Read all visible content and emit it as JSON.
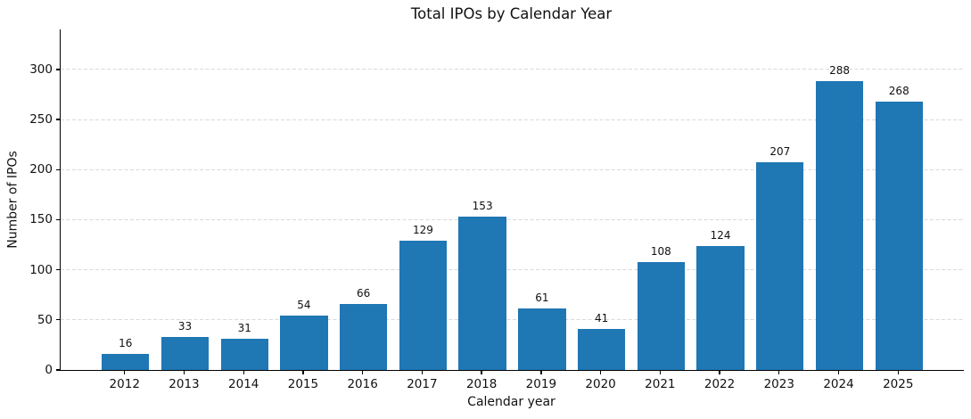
{
  "chart_data": {
    "type": "bar",
    "title": "Total IPOs by Calendar Year",
    "xlabel": "Calendar year",
    "ylabel": "Number of IPOs",
    "categories": [
      "2012",
      "2013",
      "2014",
      "2015",
      "2016",
      "2017",
      "2018",
      "2019",
      "2020",
      "2021",
      "2022",
      "2023",
      "2024",
      "2025"
    ],
    "values": [
      16,
      33,
      31,
      54,
      66,
      129,
      153,
      61,
      41,
      108,
      124,
      207,
      288,
      268
    ],
    "value_labels_shown": true,
    "yticks": [
      0,
      50,
      100,
      150,
      200,
      250,
      300
    ],
    "ylim": [
      0,
      340
    ],
    "bar_color": "#1f77b4",
    "grid": "horizontal-dashed",
    "grid_color": "#d9d9d9",
    "legend": "none"
  }
}
